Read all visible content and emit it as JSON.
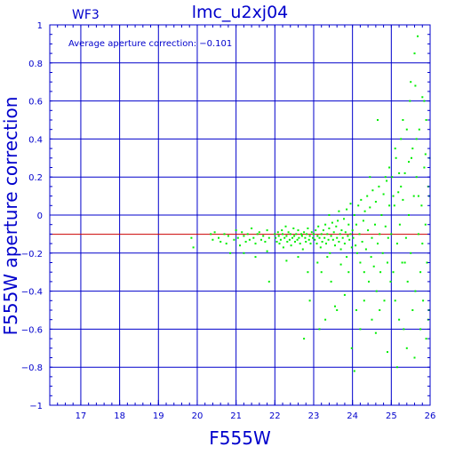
{
  "chart_data": {
    "type": "scatter",
    "title": "lmc_u2xj04",
    "chip_label": "WF3",
    "annotation": "Average aperture correction: −0.101",
    "xlabel": "F555W",
    "ylabel": "F555W aperture correction",
    "xlim": [
      16.2,
      26
    ],
    "ylim": [
      -1,
      1
    ],
    "x_ticks": [
      17,
      18,
      19,
      20,
      21,
      22,
      23,
      24,
      25,
      26
    ],
    "y_ticks": [
      -1,
      -0.8,
      -0.6,
      -0.4,
      -0.2,
      0,
      0.2,
      0.4,
      0.6,
      0.8,
      1
    ],
    "grid": true,
    "reference_line": {
      "y": -0.101,
      "color": "#cc0000"
    },
    "colors": {
      "axes": "#0000cc",
      "points": "#00ee00",
      "reference": "#cc0000"
    },
    "series": [
      {
        "points": [
          [
            19.85,
            -0.12
          ],
          [
            19.9,
            -0.17
          ],
          [
            20.35,
            -0.1
          ],
          [
            20.4,
            -0.13
          ],
          [
            20.45,
            -0.09
          ],
          [
            20.55,
            -0.12
          ],
          [
            20.6,
            -0.14
          ],
          [
            20.7,
            -0.1
          ],
          [
            20.75,
            -0.15
          ],
          [
            20.8,
            -0.11
          ],
          [
            20.85,
            -0.2
          ],
          [
            20.95,
            -0.13
          ],
          [
            21.0,
            -0.08
          ],
          [
            21.05,
            -0.12
          ],
          [
            21.1,
            -0.16
          ],
          [
            21.15,
            -0.09
          ],
          [
            21.2,
            -0.11
          ],
          [
            21.25,
            -0.14
          ],
          [
            21.3,
            -0.1
          ],
          [
            21.35,
            -0.13
          ],
          [
            21.4,
            -0.07
          ],
          [
            21.45,
            -0.12
          ],
          [
            21.5,
            -0.15
          ],
          [
            21.55,
            -0.1
          ],
          [
            21.6,
            -0.09
          ],
          [
            21.65,
            -0.13
          ],
          [
            21.7,
            -0.11
          ],
          [
            21.75,
            -0.14
          ],
          [
            21.8,
            -0.08
          ],
          [
            21.85,
            -0.12
          ],
          [
            21.2,
            -0.2
          ],
          [
            21.5,
            -0.22
          ],
          [
            21.8,
            -0.19
          ],
          [
            21.85,
            -0.35
          ],
          [
            22.0,
            -0.1
          ],
          [
            22.02,
            -0.12
          ],
          [
            22.05,
            -0.14
          ],
          [
            22.08,
            -0.09
          ],
          [
            22.1,
            -0.11
          ],
          [
            22.12,
            -0.15
          ],
          [
            22.15,
            -0.13
          ],
          [
            22.18,
            -0.08
          ],
          [
            22.2,
            -0.1
          ],
          [
            22.22,
            -0.17
          ],
          [
            22.25,
            -0.12
          ],
          [
            22.28,
            -0.06
          ],
          [
            22.3,
            -0.11
          ],
          [
            22.32,
            -0.14
          ],
          [
            22.35,
            -0.09
          ],
          [
            22.38,
            -0.13
          ],
          [
            22.4,
            -0.1
          ],
          [
            22.42,
            -0.16
          ],
          [
            22.45,
            -0.12
          ],
          [
            22.48,
            -0.07
          ],
          [
            22.5,
            -0.11
          ],
          [
            22.52,
            -0.14
          ],
          [
            22.55,
            -0.1
          ],
          [
            22.58,
            -0.13
          ],
          [
            22.6,
            -0.08
          ],
          [
            22.62,
            -0.12
          ],
          [
            22.65,
            -0.15
          ],
          [
            22.68,
            -0.1
          ],
          [
            22.7,
            -0.11
          ],
          [
            22.72,
            -0.18
          ],
          [
            22.75,
            -0.09
          ],
          [
            22.78,
            -0.12
          ],
          [
            22.8,
            -0.14
          ],
          [
            22.82,
            -0.1
          ],
          [
            22.85,
            -0.07
          ],
          [
            22.88,
            -0.13
          ],
          [
            22.9,
            -0.11
          ],
          [
            22.92,
            -0.15
          ],
          [
            22.95,
            -0.09
          ],
          [
            22.98,
            -0.12
          ],
          [
            22.3,
            -0.24
          ],
          [
            22.6,
            -0.22
          ],
          [
            22.85,
            -0.3
          ],
          [
            22.9,
            -0.45
          ],
          [
            22.75,
            -0.65
          ],
          [
            23.0,
            -0.1
          ],
          [
            23.03,
            -0.13
          ],
          [
            23.05,
            -0.08
          ],
          [
            23.08,
            -0.15
          ],
          [
            23.1,
            -0.11
          ],
          [
            23.12,
            -0.06
          ],
          [
            23.15,
            -0.12
          ],
          [
            23.18,
            -0.17
          ],
          [
            23.2,
            -0.1
          ],
          [
            23.22,
            -0.14
          ],
          [
            23.25,
            -0.08
          ],
          [
            23.28,
            -0.12
          ],
          [
            23.3,
            -0.05
          ],
          [
            23.32,
            -0.15
          ],
          [
            23.35,
            -0.1
          ],
          [
            23.38,
            -0.13
          ],
          [
            23.4,
            -0.07
          ],
          [
            23.42,
            -0.2
          ],
          [
            23.45,
            -0.11
          ],
          [
            23.48,
            -0.04
          ],
          [
            23.5,
            -0.13
          ],
          [
            23.52,
            -0.09
          ],
          [
            23.55,
            -0.16
          ],
          [
            23.58,
            -0.06
          ],
          [
            23.6,
            -0.12
          ],
          [
            23.62,
            -0.03
          ],
          [
            23.65,
            -0.14
          ],
          [
            23.68,
            -0.1
          ],
          [
            23.7,
            -0.18
          ],
          [
            23.72,
            -0.08
          ],
          [
            23.75,
            -0.12
          ],
          [
            23.78,
            -0.02
          ],
          [
            23.8,
            -0.15
          ],
          [
            23.82,
            -0.09
          ],
          [
            23.85,
            -0.22
          ],
          [
            23.88,
            -0.11
          ],
          [
            23.9,
            -0.05
          ],
          [
            23.92,
            -0.13
          ],
          [
            23.95,
            -0.1
          ],
          [
            23.98,
            -0.17
          ],
          [
            23.1,
            -0.25
          ],
          [
            23.2,
            -0.3
          ],
          [
            23.35,
            -0.22
          ],
          [
            23.45,
            -0.35
          ],
          [
            23.55,
            -0.48
          ],
          [
            23.6,
            -0.5
          ],
          [
            23.8,
            -0.42
          ],
          [
            23.15,
            -0.6
          ],
          [
            23.3,
            -0.55
          ],
          [
            23.9,
            -0.3
          ],
          [
            23.7,
            -0.26
          ],
          [
            23.4,
            0.0
          ],
          [
            23.65,
            0.02
          ],
          [
            23.85,
            0.03
          ],
          [
            23.95,
            0.06
          ],
          [
            23.98,
            -0.7
          ],
          [
            24.0,
            -0.08
          ],
          [
            24.02,
            -0.12
          ],
          [
            24.05,
            0.0
          ],
          [
            24.08,
            -0.16
          ],
          [
            24.1,
            -0.05
          ],
          [
            24.12,
            -0.2
          ],
          [
            24.15,
            0.05
          ],
          [
            24.18,
            -0.1
          ],
          [
            24.2,
            -0.25
          ],
          [
            24.22,
            0.08
          ],
          [
            24.25,
            -0.14
          ],
          [
            24.28,
            -0.03
          ],
          [
            24.3,
            -0.3
          ],
          [
            24.32,
            0.02
          ],
          [
            24.35,
            -0.18
          ],
          [
            24.38,
            0.1
          ],
          [
            24.4,
            -0.08
          ],
          [
            24.42,
            -0.35
          ],
          [
            24.45,
            0.04
          ],
          [
            24.48,
            -0.22
          ],
          [
            24.5,
            -0.12
          ],
          [
            24.52,
            0.13
          ],
          [
            24.55,
            -0.27
          ],
          [
            24.58,
            -0.05
          ],
          [
            24.6,
            0.07
          ],
          [
            24.62,
            -0.4
          ],
          [
            24.65,
            -0.15
          ],
          [
            24.68,
            0.15
          ],
          [
            24.7,
            -0.1
          ],
          [
            24.72,
            -0.3
          ],
          [
            24.75,
            0.0
          ],
          [
            24.78,
            -0.2
          ],
          [
            24.8,
            0.11
          ],
          [
            24.82,
            -0.45
          ],
          [
            24.85,
            -0.06
          ],
          [
            24.88,
            0.18
          ],
          [
            24.9,
            -0.25
          ],
          [
            24.92,
            -0.12
          ],
          [
            24.95,
            0.05
          ],
          [
            24.98,
            -0.35
          ],
          [
            24.1,
            -0.5
          ],
          [
            24.3,
            -0.45
          ],
          [
            24.2,
            -0.6
          ],
          [
            24.5,
            -0.55
          ],
          [
            24.7,
            -0.5
          ],
          [
            24.6,
            -0.62
          ],
          [
            24.85,
            0.2
          ],
          [
            24.95,
            0.25
          ],
          [
            24.9,
            -0.72
          ],
          [
            24.45,
            0.2
          ],
          [
            24.05,
            -0.82
          ],
          [
            24.65,
            0.5
          ],
          [
            25.0,
            -0.1
          ],
          [
            25.02,
            0.2
          ],
          [
            25.05,
            -0.3
          ],
          [
            25.08,
            0.05
          ],
          [
            25.1,
            -0.45
          ],
          [
            25.12,
            0.3
          ],
          [
            25.15,
            -0.15
          ],
          [
            25.18,
            0.12
          ],
          [
            25.2,
            -0.55
          ],
          [
            25.22,
            -0.05
          ],
          [
            25.25,
            0.4
          ],
          [
            25.28,
            -0.25
          ],
          [
            25.3,
            0.08
          ],
          [
            25.32,
            -0.6
          ],
          [
            25.35,
            0.22
          ],
          [
            25.38,
            -0.12
          ],
          [
            25.4,
            0.45
          ],
          [
            25.42,
            -0.35
          ],
          [
            25.45,
            0.0
          ],
          [
            25.48,
            0.6
          ],
          [
            25.5,
            -0.2
          ],
          [
            25.52,
            0.3
          ],
          [
            25.55,
            -0.5
          ],
          [
            25.58,
            0.1
          ],
          [
            25.6,
            0.85
          ],
          [
            25.62,
            -0.4
          ],
          [
            25.65,
            0.2
          ],
          [
            25.68,
            0.94
          ],
          [
            25.7,
            -0.1
          ],
          [
            25.72,
            0.45
          ],
          [
            25.75,
            -0.3
          ],
          [
            25.78,
            0.05
          ],
          [
            25.8,
            0.62
          ],
          [
            25.82,
            -0.45
          ],
          [
            25.85,
            0.25
          ],
          [
            25.88,
            -0.05
          ],
          [
            25.9,
            0.5
          ],
          [
            25.92,
            -0.25
          ],
          [
            25.95,
            0.15
          ],
          [
            25.97,
            -0.5
          ],
          [
            25.99,
            0.3
          ],
          [
            25.1,
            0.35
          ],
          [
            25.3,
            0.5
          ],
          [
            25.5,
            0.7
          ],
          [
            25.65,
            0.4
          ],
          [
            25.85,
            0.6
          ],
          [
            25.95,
            -0.55
          ],
          [
            25.4,
            -0.7
          ],
          [
            25.15,
            -0.8
          ],
          [
            25.6,
            -0.75
          ],
          [
            25.9,
            -0.65
          ],
          [
            25.75,
            -0.6
          ],
          [
            25.55,
            0.35
          ],
          [
            25.25,
            0.15
          ],
          [
            25.45,
            0.28
          ],
          [
            25.05,
            0.1
          ],
          [
            25.35,
            -0.25
          ],
          [
            25.7,
            0.1
          ],
          [
            25.88,
            0.32
          ],
          [
            25.98,
            0.1
          ],
          [
            25.2,
            0.22
          ],
          [
            25.8,
            -0.15
          ],
          [
            25.62,
            0.68
          ]
        ]
      }
    ]
  }
}
